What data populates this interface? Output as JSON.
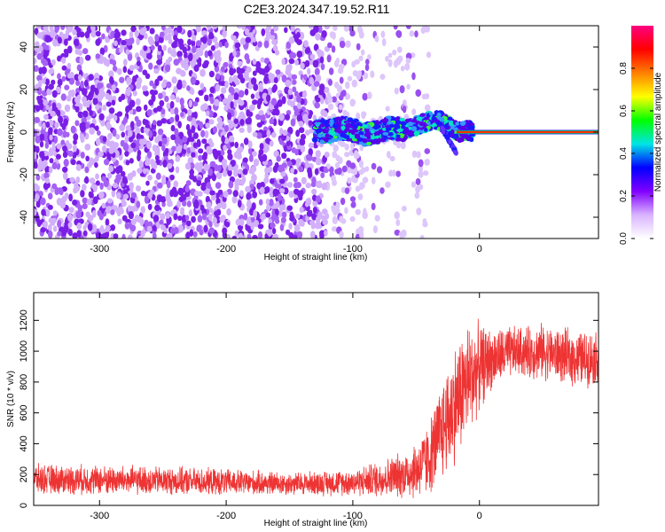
{
  "title": "C2E3.2024.347.19.52.R11",
  "chart_data": [
    {
      "type": "heatmap",
      "xlabel": "Height of straight line (km)",
      "ylabel": "Frequency (Hz)",
      "xlim": [
        -352,
        94
      ],
      "ylim": [
        -50,
        50
      ],
      "xticks": [
        -300,
        -200,
        -100,
        0
      ],
      "yticks": [
        -40,
        -20,
        0,
        20,
        40
      ],
      "ridge": {
        "x": [
          -130,
          -120,
          -110,
          -100,
          -90,
          -80,
          -70,
          -60,
          -50,
          -40,
          -35,
          -30,
          -25,
          -20,
          -15,
          -10,
          -5,
          0,
          10,
          50,
          94
        ],
        "frequency": [
          1,
          0,
          2,
          1,
          -1,
          0,
          2,
          1,
          3,
          5,
          6,
          5,
          3,
          1,
          0,
          1,
          0,
          0,
          0,
          0,
          0
        ]
      },
      "colorbar": {
        "label": "Normalized spectral amplitude",
        "range": [
          0,
          1
        ],
        "ticks": [
          "0.0",
          "0.2",
          "0.4",
          "0.6",
          "0.8"
        ],
        "colors": [
          "#ffffff",
          "#d9b3ff",
          "#8000ff",
          "#0000ff",
          "#00e5e5",
          "#00ff00",
          "#ffff00",
          "#ff8000",
          "#ff0000",
          "#ff0080"
        ]
      }
    },
    {
      "type": "line",
      "xlabel": "Height of straight line (km)",
      "ylabel": "SNR (10 * v/v)",
      "xlim": [
        -352,
        94
      ],
      "ylim": [
        0,
        1380
      ],
      "xticks": [
        -300,
        -200,
        -100,
        0
      ],
      "yticks": [
        0,
        200,
        400,
        600,
        800,
        1000,
        1200
      ],
      "color": "#ee3333",
      "series": {
        "name": "SNR",
        "x": [
          -352,
          -300,
          -250,
          -200,
          -150,
          -100,
          -80,
          -60,
          -50,
          -40,
          -30,
          -20,
          -10,
          0,
          10,
          20,
          30,
          40,
          50,
          60,
          70,
          80,
          94
        ],
        "mean": [
          170,
          165,
          160,
          150,
          140,
          150,
          170,
          200,
          230,
          300,
          480,
          650,
          800,
          900,
          950,
          980,
          1000,
          990,
          1000,
          980,
          960,
          950,
          960
        ],
        "spread": [
          90,
          90,
          85,
          80,
          70,
          80,
          110,
          140,
          180,
          220,
          300,
          360,
          360,
          260,
          180,
          170,
          150,
          160,
          170,
          160,
          170,
          170,
          160
        ]
      }
    }
  ]
}
